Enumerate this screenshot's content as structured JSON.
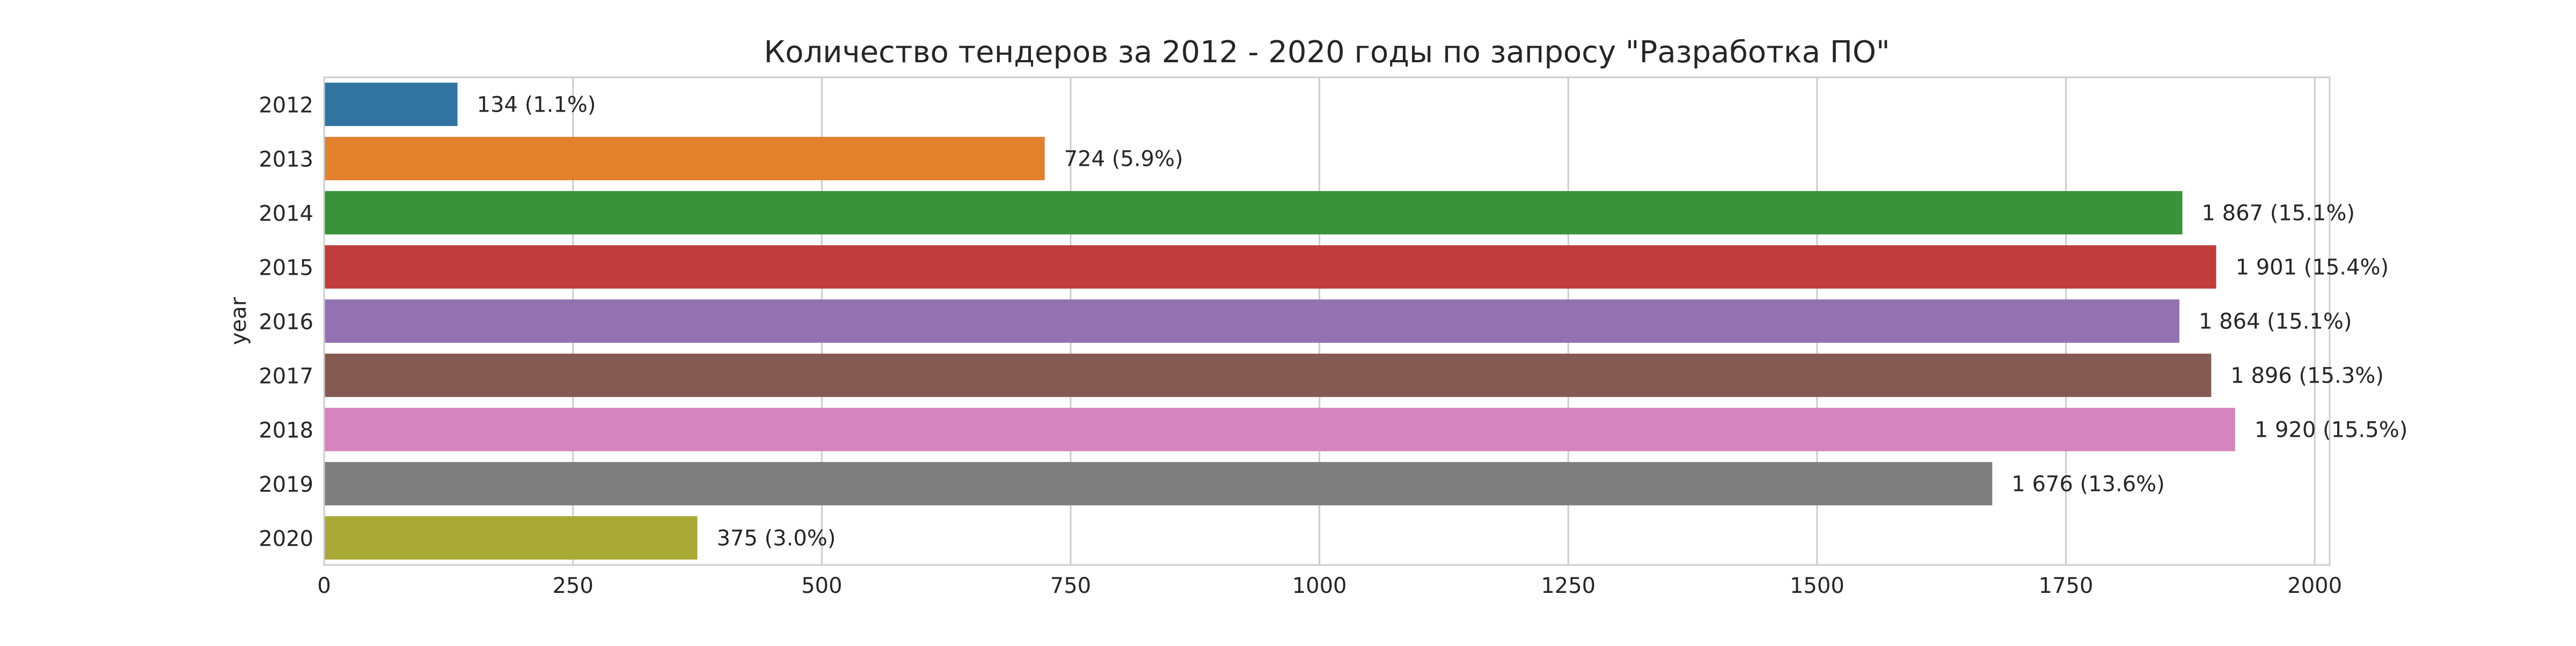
{
  "chart_data": {
    "type": "bar",
    "orientation": "horizontal",
    "title": "Количество тендеров за 2012 - 2020 годы по запросу \"Разработка ПО\"",
    "xlabel": "",
    "ylabel": "year",
    "categories": [
      "2012",
      "2013",
      "2014",
      "2015",
      "2016",
      "2017",
      "2018",
      "2019",
      "2020"
    ],
    "values": [
      134,
      724,
      1867,
      1901,
      1864,
      1896,
      1920,
      1676,
      375
    ],
    "data_labels": [
      "134 (1.1%)",
      "724 (5.9%)",
      "1 867 (15.1%)",
      "1 901 (15.4%)",
      "1 864 (15.1%)",
      "1 896 (15.3%)",
      "1 920 (15.5%)",
      "1 676 (13.6%)",
      "375 (3.0%)"
    ],
    "colors": [
      "#3274a1",
      "#e1812c",
      "#3a923a",
      "#c03d3e",
      "#9372b2",
      "#845b53",
      "#d684bd",
      "#7f7f7f",
      "#a9aa35"
    ],
    "xlim": [
      0,
      2015
    ],
    "xticks": [
      0,
      250,
      500,
      750,
      1000,
      1250,
      1500,
      1750,
      2000
    ],
    "xtick_labels": [
      "0",
      "250",
      "500",
      "750",
      "1000",
      "1250",
      "1500",
      "1750",
      "2000"
    ],
    "grid": true,
    "legend": "none"
  }
}
